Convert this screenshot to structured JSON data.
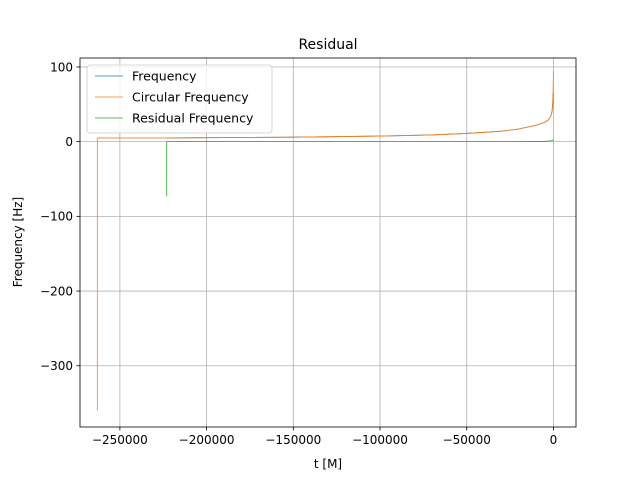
{
  "chart_data": {
    "type": "line",
    "title": "Residual",
    "xlabel": "t [M]",
    "ylabel": "Frequency [Hz]",
    "xlim": [
      -273000,
      13000
    ],
    "ylim": [
      -382,
      112
    ],
    "xticks": [
      -250000,
      -200000,
      -150000,
      -100000,
      -50000,
      0
    ],
    "xtick_labels": [
      "−250000",
      "−200000",
      "−150000",
      "−100000",
      "−50000",
      "0"
    ],
    "yticks": [
      -300,
      -200,
      -100,
      0,
      100
    ],
    "ytick_labels": [
      "−300",
      "−200",
      "−100",
      "0",
      "100"
    ],
    "grid": true,
    "legend_position": "top-left",
    "series": [
      {
        "name": "Frequency",
        "color": "#1f77b4",
        "x": [
          -223000,
          -200000,
          -150000,
          -100000,
          -70000,
          -50000,
          -30000,
          -20000,
          -10000,
          -5000,
          -3000,
          -1500,
          -800,
          -300,
          0
        ],
        "y": [
          5,
          5.3,
          6,
          7.5,
          9,
          11,
          14,
          17,
          22,
          26,
          29,
          34,
          40,
          52,
          65
        ]
      },
      {
        "name": "Circular Frequency",
        "color": "#ff7f0e",
        "x": [
          -263000,
          -262999,
          -262500,
          -223000,
          -200000,
          -150000,
          -100000,
          -70000,
          -50000,
          -30000,
          -20000,
          -10000,
          -5000,
          -3000,
          -1500,
          -800,
          -300,
          0
        ],
        "y": [
          -360,
          5,
          5,
          5,
          5.3,
          6,
          7.5,
          9,
          11,
          14,
          17,
          22,
          26,
          29,
          34,
          42,
          60,
          95
        ]
      },
      {
        "name": "Residual Frequency",
        "color": "#2ca02c",
        "x": [
          -223000,
          -222999,
          -222500,
          -200000,
          -150000,
          -100000,
          -50000,
          -20000,
          -5000,
          -1000,
          -300,
          0
        ],
        "y": [
          -73,
          0,
          0,
          0,
          0,
          0,
          0,
          0,
          0.5,
          1,
          2,
          3
        ]
      }
    ]
  }
}
